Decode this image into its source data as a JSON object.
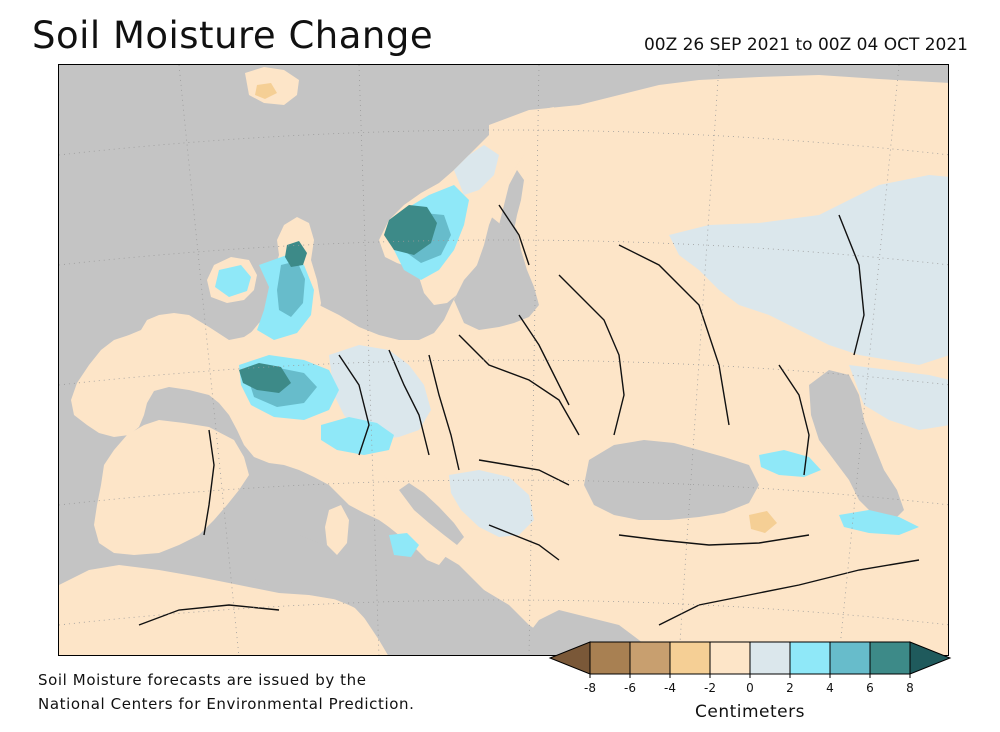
{
  "title": "Soil Moisture Change",
  "period": "00Z 26 SEP 2021 to 00Z 04 OCT 2021",
  "credit": {
    "line1": "Soil Moisture forecasts are issued by the",
    "line2": "National Centers for Environmental Prediction."
  },
  "legend": {
    "unit": "Centimeters",
    "ticks": [
      "-8",
      "-6",
      "-4",
      "-2",
      "0",
      "2",
      "4",
      "6",
      "8"
    ],
    "bins": [
      {
        "from": "-8",
        "to": "-6",
        "color": "#a88052"
      },
      {
        "from": "-6",
        "to": "-4",
        "color": "#c89f6f"
      },
      {
        "from": "-4",
        "to": "-2",
        "color": "#f5cf95"
      },
      {
        "from": "-2",
        "to": "0",
        "color": "#fde5c8"
      },
      {
        "from": "0",
        "to": "2",
        "color": "#dbe7ec"
      },
      {
        "from": "2",
        "to": "4",
        "color": "#8fe8f8"
      },
      {
        "from": "4",
        "to": "6",
        "color": "#67bccb"
      },
      {
        "from": "6",
        "to": "8",
        "color": "#3d8a88"
      }
    ],
    "below_color": "#7a5838",
    "above_color": "#1f5a5c"
  },
  "map": {
    "water_color": "#c4c4c4",
    "land_dry_color": "#fde5c8",
    "land_neutral_color": "#dbe7ec",
    "wet_light_color": "#8fe8f8",
    "wet_mid_color": "#67bccb",
    "wet_heavy_color": "#3d8a88"
  }
}
